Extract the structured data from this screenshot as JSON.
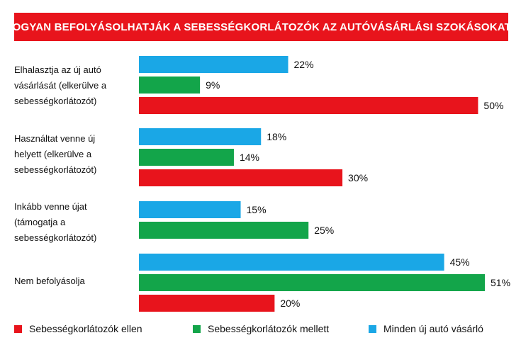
{
  "chart_data": {
    "type": "bar",
    "orientation": "horizontal",
    "title": "HOGYAN BEFOLYÁSOLHATJÁK A SEBESSÉGKORLÁTOZÓK AZ AUTÓVÁSÁRLÁSI SZOKÁSOKAT?",
    "categories": [
      "Elhalasztja az új autó vásárlását (elkerülve a sebességkorlátozót)",
      "Használtat venne új helyett (elkerülve a sebességkorlátozót)",
      "Inkább venne újat (támogatja a sebességkorlátozót)",
      "Nem befolyásolja"
    ],
    "series": [
      {
        "name": "Minden új autó vásárló",
        "color": "#1aa7e6",
        "values": [
          22,
          18,
          15,
          45
        ]
      },
      {
        "name": "Sebességkorlátozók mellett",
        "color": "#13a54a",
        "values": [
          9,
          14,
          25,
          51
        ]
      },
      {
        "name": "Sebességkorlátozók ellen",
        "color": "#e8141c",
        "values": [
          50,
          30,
          null,
          20
        ]
      }
    ],
    "value_labels": [
      [
        "22%",
        "9%",
        "50%"
      ],
      [
        "18%",
        "14%",
        "30%"
      ],
      [
        "15%",
        "25%",
        null
      ],
      [
        "45%",
        "51%",
        "20%"
      ]
    ],
    "xlim": [
      0,
      51
    ],
    "grid": false,
    "legend_placement": "bottom",
    "legend_order": [
      "Sebességkorlátozók ellen",
      "Sebességkorlátozók mellett",
      "Minden új autó vásárló"
    ]
  },
  "category_label_lines": [
    [
      "Elhalasztja az új autó",
      "vásárlását (elkerülve a",
      "sebességkorlátozót)"
    ],
    [
      "Használtat venne új",
      "helyett (elkerülve a",
      "sebességkorlátozót)"
    ],
    [
      "Inkább venne újat",
      "(támogatja a",
      "sebességkorlátozót)"
    ],
    [
      "Nem befolyásolja"
    ]
  ],
  "legend": [
    {
      "label": "Sebességkorlátozók ellen",
      "color": "#e8141c"
    },
    {
      "label": "Sebességkorlátozók mellett",
      "color": "#13a54a"
    },
    {
      "label": "Minden új autó vásárló",
      "color": "#1aa7e6"
    }
  ]
}
